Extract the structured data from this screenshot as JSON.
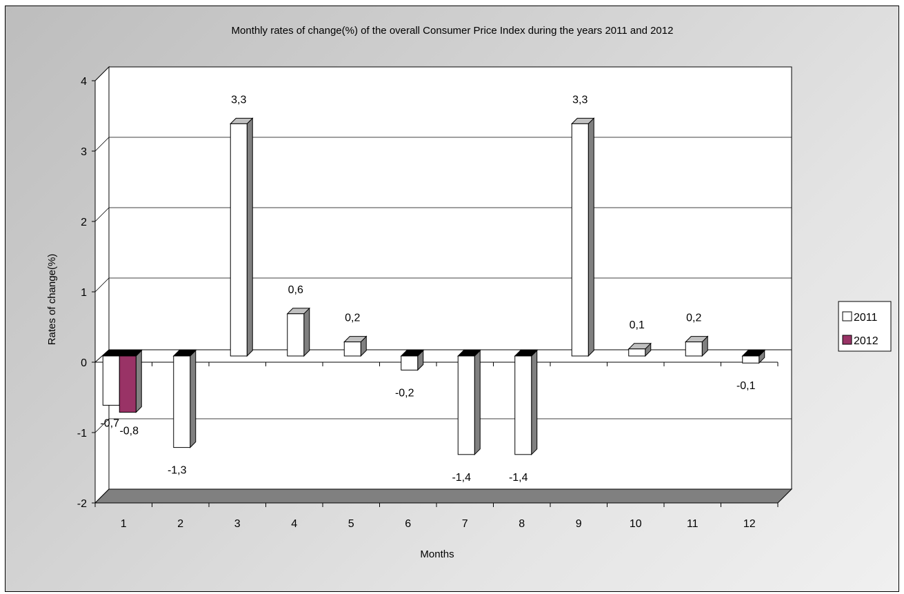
{
  "chart_data": {
    "type": "bar",
    "title": "Monthly rates of change(%) of the overall Consumer Price Index during the years 2011 and 2012",
    "xlabel": "Months",
    "ylabel": "Rates of change(%)",
    "ylim": [
      -2,
      4
    ],
    "yticks": [
      "-2",
      "-1",
      "0",
      "1",
      "2",
      "3",
      "4"
    ],
    "categories": [
      "1",
      "2",
      "3",
      "4",
      "5",
      "6",
      "7",
      "8",
      "9",
      "10",
      "11",
      "12"
    ],
    "grid": true,
    "legend_position": "right",
    "series": [
      {
        "name": "2011",
        "color": "#ffffff",
        "values": [
          -0.7,
          -1.3,
          3.3,
          0.6,
          0.2,
          -0.2,
          -1.4,
          -1.4,
          3.3,
          0.1,
          0.2,
          -0.1
        ],
        "labels": [
          "-0,7",
          "-1,3",
          "3,3",
          "0,6",
          "0,2",
          "-0,2",
          "-1,4",
          "-1,4",
          "3,3",
          "0,1",
          "0,2",
          "-0,1"
        ]
      },
      {
        "name": "2012",
        "color": "#993366",
        "values": [
          -0.8,
          null,
          null,
          null,
          null,
          null,
          null,
          null,
          null,
          null,
          null,
          null
        ],
        "labels": [
          "-0,8",
          "",
          "",
          "",
          "",
          "",
          "",
          "",
          "",
          "",
          "",
          ""
        ]
      }
    ]
  }
}
